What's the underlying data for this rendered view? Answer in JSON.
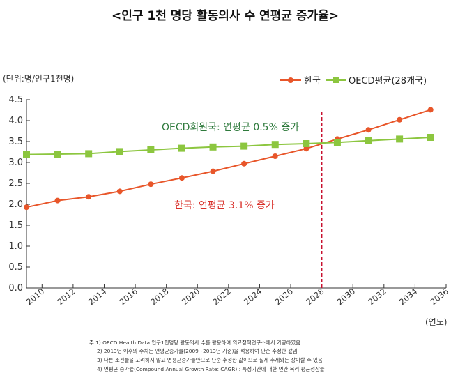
{
  "chart_data": {
    "type": "line",
    "title": "<인구 1천 명당 활동의사 수 연평균 증가율>",
    "unit_label": "(단위:명/인구1천명)",
    "xlabel": "(연도)",
    "ylabel": "",
    "ylim": [
      0.0,
      4.5
    ],
    "yticks": [
      "0.0",
      "0.5",
      "1.0",
      "1.5",
      "2.0",
      "2.5",
      "3.0",
      "3.5",
      "4.0",
      "4.5"
    ],
    "xlim": [
      2009,
      2036
    ],
    "xticks": [
      "2010",
      "2012",
      "2014",
      "2016",
      "2018",
      "2020",
      "2022",
      "2024",
      "2026",
      "2028",
      "2030",
      "2032",
      "2034",
      "2036"
    ],
    "marker_year": 2028,
    "grid": false,
    "legend_placement": "top-right",
    "series": [
      {
        "name": "한국",
        "color": "#e8562a",
        "marker": "circle",
        "x": [
          2009,
          2011,
          2013,
          2015,
          2017,
          2019,
          2021,
          2023,
          2025,
          2027,
          2029,
          2031,
          2033,
          2035
        ],
        "values": [
          1.93,
          2.09,
          2.18,
          2.31,
          2.48,
          2.63,
          2.79,
          2.97,
          3.15,
          3.33,
          3.56,
          3.78,
          4.02,
          4.26
        ]
      },
      {
        "name": "OECD평균(28개국)",
        "color": "#8cc63f",
        "marker": "square",
        "x": [
          2009,
          2011,
          2013,
          2015,
          2017,
          2019,
          2021,
          2023,
          2025,
          2027,
          2029,
          2031,
          2033,
          2035
        ],
        "values": [
          3.19,
          3.2,
          3.21,
          3.26,
          3.3,
          3.34,
          3.37,
          3.39,
          3.43,
          3.45,
          3.48,
          3.52,
          3.56,
          3.6
        ]
      }
    ],
    "annotations": [
      {
        "text": "OECD회원국: 연평균 0.5% 증가",
        "color": "#2e7a3c"
      },
      {
        "text": "한국: 연평균 3.1% 증가",
        "color": "#d9302a"
      }
    ],
    "notes": [
      "주 1) OECD Health Data 인구1천명당 활동의사 수를 활용하여 의료정책연구소에서 가공하였음",
      "2) 2013년 이후의 수치는 연평균증가율(2009~2013년 기준)을 적용하여 단순 추정한 값임",
      "3) 다른 조건들을 고려하지 않고 연평균증가율만으로 단순 추정한 값이므로 실제 추세와는 상이할 수 있음",
      "4) 연평균 증가율(Compound Annual Growth Rate: CAGR) : 특정기간에 대한 연간 복리 평균성장율"
    ]
  }
}
